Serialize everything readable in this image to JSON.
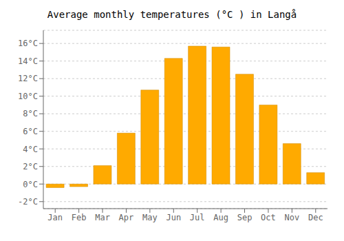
{
  "chart_data": {
    "type": "bar",
    "title": "Average monthly temperatures (°C ) in Langå",
    "categories": [
      "Jan",
      "Feb",
      "Mar",
      "Apr",
      "May",
      "Jun",
      "Jul",
      "Aug",
      "Sep",
      "Oct",
      "Nov",
      "Dec"
    ],
    "values": [
      -0.4,
      -0.3,
      2.1,
      5.8,
      10.7,
      14.3,
      15.7,
      15.6,
      12.5,
      9.0,
      4.6,
      1.3
    ],
    "color": "#FFAA00",
    "ylim": [
      -2.8,
      17.5
    ],
    "yticks": [
      {
        "value": -2,
        "label": "-2°C"
      },
      {
        "value": 0,
        "label": "0°C"
      },
      {
        "value": 2,
        "label": "2°C"
      },
      {
        "value": 4,
        "label": "4°C"
      },
      {
        "value": 6,
        "label": "6°C"
      },
      {
        "value": 8,
        "label": "8°C"
      },
      {
        "value": 10,
        "label": "10°C"
      },
      {
        "value": 12,
        "label": "12°C"
      },
      {
        "value": 14,
        "label": "14°C"
      },
      {
        "value": 16,
        "label": "16°C"
      }
    ],
    "grid": true
  }
}
